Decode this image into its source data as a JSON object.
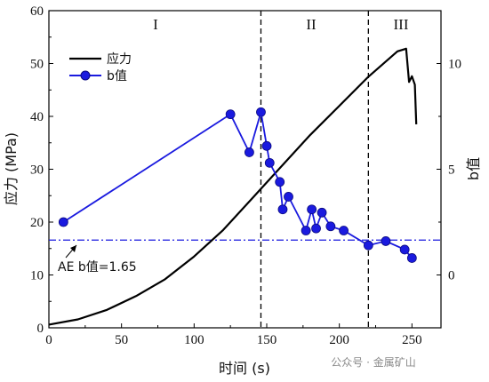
{
  "chart_data": {
    "type": "line",
    "xlabel": "时间 (s)",
    "ylabel_left": "应力 (MPa)",
    "ylabel_right": "b值",
    "xlim": [
      0,
      270
    ],
    "ylim_left": [
      0,
      60
    ],
    "ylim_right": [
      -2.5,
      12.5
    ],
    "x_ticks": [
      0,
      50,
      100,
      150,
      200,
      250
    ],
    "y_left_ticks": [
      0,
      10,
      20,
      30,
      40,
      50,
      60
    ],
    "y_right_ticks": [
      0,
      5,
      10
    ],
    "legend": {
      "placement": "top-left",
      "entries": [
        "应力",
        "b值"
      ]
    },
    "regions": [
      {
        "label": "I",
        "x_start": 0,
        "x_end": 146
      },
      {
        "label": "II",
        "x_start": 146,
        "x_end": 220
      },
      {
        "label": "III",
        "x_start": 220,
        "x_end": 270
      }
    ],
    "boundaries": [
      146,
      220
    ],
    "stress_color": "#000000",
    "b_color": "#1a1adf",
    "reference_line": {
      "value": 1.65,
      "label": "AE b值=1.65",
      "color": "#1a1adf"
    },
    "series": [
      {
        "name": "应力",
        "axis": "left",
        "x": [
          0,
          20,
          40,
          60,
          80,
          100,
          120,
          140,
          160,
          180,
          200,
          220,
          240,
          246,
          248,
          250,
          252,
          253
        ],
        "y": [
          0.6,
          1.6,
          3.4,
          6.0,
          9.2,
          13.5,
          18.5,
          24.5,
          30.5,
          36.5,
          42.0,
          47.5,
          52.3,
          52.8,
          46.5,
          47.6,
          46.0,
          38.5
        ]
      },
      {
        "name": "b值",
        "axis": "right",
        "x": [
          10,
          125,
          138,
          146,
          150,
          152,
          159,
          161,
          165,
          177,
          181,
          184,
          188,
          194,
          203,
          220,
          232,
          245,
          250
        ],
        "y": [
          2.5,
          7.6,
          5.8,
          7.7,
          6.1,
          5.3,
          4.4,
          3.1,
          3.7,
          2.1,
          3.1,
          2.2,
          2.95,
          2.3,
          2.1,
          1.4,
          1.6,
          1.2,
          0.8
        ]
      }
    ]
  },
  "watermark": "公众号 · 金属矿山"
}
